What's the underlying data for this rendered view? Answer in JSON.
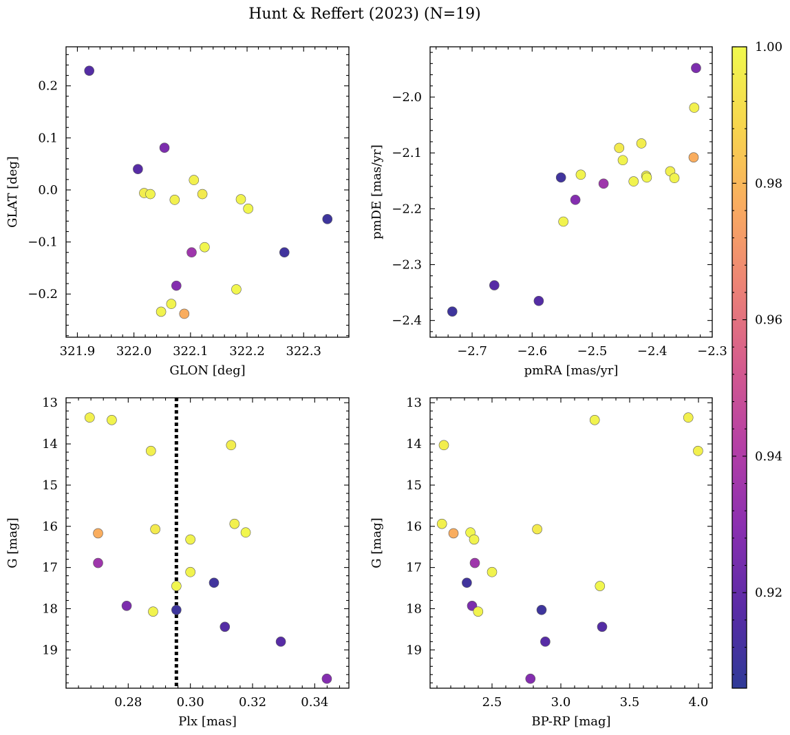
{
  "figure": {
    "title": "Hunt & Reffert (2023) (N=19)"
  },
  "colorbar": {
    "vmin": 0.906,
    "vmax": 1.0,
    "colormap": "plasma",
    "colormap_stops": [
      "#2f3a97",
      "#5a2ba6",
      "#8a2fb0",
      "#b43fa6",
      "#d45b8e",
      "#ec8276",
      "#f9ab60",
      "#f7d54e",
      "#f0f94e"
    ],
    "ticks": [
      0.92,
      0.94,
      0.96,
      0.98,
      1.0
    ],
    "tick_labels": [
      "0.92",
      "0.94",
      "0.96",
      "0.98",
      "1.00"
    ]
  },
  "chart_data": [
    {
      "type": "scatter",
      "xlabel": "GLON [deg]",
      "ylabel": "GLAT [deg]",
      "xlim": [
        321.88,
        322.38
      ],
      "ylim": [
        -0.283,
        0.275
      ],
      "xticks": [
        321.9,
        322.0,
        322.1,
        322.2,
        322.3
      ],
      "xtick_labels": [
        "321.9",
        "322.0",
        "322.1",
        "322.2",
        "322.3"
      ],
      "yticks": [
        -0.2,
        -0.1,
        0.0,
        0.1,
        0.2
      ],
      "ytick_labels": [
        "−0.2",
        "−0.1",
        "0.0",
        "0.1",
        "0.2"
      ],
      "points": [
        {
          "x": 321.921,
          "y": 0.229,
          "c": 0.916
        },
        {
          "x": 322.007,
          "y": 0.04,
          "c": 0.917
        },
        {
          "x": 322.054,
          "y": 0.081,
          "c": 0.926
        },
        {
          "x": 322.018,
          "y": -0.006,
          "c": 0.996
        },
        {
          "x": 322.029,
          "y": -0.008,
          "c": 0.998
        },
        {
          "x": 322.072,
          "y": -0.019,
          "c": 0.997
        },
        {
          "x": 322.106,
          "y": 0.019,
          "c": 0.997
        },
        {
          "x": 322.121,
          "y": -0.008,
          "c": 0.995
        },
        {
          "x": 322.189,
          "y": -0.018,
          "c": 0.998
        },
        {
          "x": 322.202,
          "y": -0.036,
          "c": 0.999
        },
        {
          "x": 322.342,
          "y": -0.056,
          "c": 0.91
        },
        {
          "x": 322.125,
          "y": -0.11,
          "c": 0.999
        },
        {
          "x": 322.102,
          "y": -0.12,
          "c": 0.935
        },
        {
          "x": 322.266,
          "y": -0.12,
          "c": 0.911
        },
        {
          "x": 322.075,
          "y": -0.184,
          "c": 0.928
        },
        {
          "x": 322.181,
          "y": -0.191,
          "c": 0.999
        },
        {
          "x": 322.066,
          "y": -0.219,
          "c": 0.998
        },
        {
          "x": 322.048,
          "y": -0.234,
          "c": 0.998
        },
        {
          "x": 322.089,
          "y": -0.238,
          "c": 0.977
        }
      ]
    },
    {
      "type": "scatter",
      "xlabel": "pmRA [mas/yr]",
      "ylabel": "pmDE [mas/yr]",
      "xlim": [
        -2.77,
        -2.3
      ],
      "ylim": [
        -2.43,
        -1.91
      ],
      "xticks": [
        -2.7,
        -2.6,
        -2.5,
        -2.4,
        -2.3
      ],
      "xtick_labels": [
        "−2.7",
        "−2.6",
        "−2.5",
        "−2.4",
        "−2.3"
      ],
      "yticks": [
        -2.4,
        -2.3,
        -2.2,
        -2.1,
        -2.0
      ],
      "ytick_labels": [
        "−2.4",
        "−2.3",
        "−2.2",
        "−2.1",
        "−2.0"
      ],
      "points": [
        {
          "x": -2.327,
          "y": -1.948,
          "c": 0.926
        },
        {
          "x": -2.33,
          "y": -2.019,
          "c": 0.997
        },
        {
          "x": -2.418,
          "y": -2.083,
          "c": 0.996
        },
        {
          "x": -2.455,
          "y": -2.091,
          "c": 0.995
        },
        {
          "x": -2.331,
          "y": -2.108,
          "c": 0.977
        },
        {
          "x": -2.449,
          "y": -2.113,
          "c": 0.998
        },
        {
          "x": -2.552,
          "y": -2.144,
          "c": 0.911
        },
        {
          "x": -2.519,
          "y": -2.139,
          "c": 0.998
        },
        {
          "x": -2.41,
          "y": -2.141,
          "c": 0.998
        },
        {
          "x": -2.409,
          "y": -2.144,
          "c": 0.999
        },
        {
          "x": -2.37,
          "y": -2.133,
          "c": 0.997
        },
        {
          "x": -2.363,
          "y": -2.145,
          "c": 0.998
        },
        {
          "x": -2.431,
          "y": -2.151,
          "c": 0.998
        },
        {
          "x": -2.481,
          "y": -2.155,
          "c": 0.935
        },
        {
          "x": -2.528,
          "y": -2.184,
          "c": 0.928
        },
        {
          "x": -2.548,
          "y": -2.223,
          "c": 0.998
        },
        {
          "x": -2.663,
          "y": -2.337,
          "c": 0.917
        },
        {
          "x": -2.589,
          "y": -2.365,
          "c": 0.916
        },
        {
          "x": -2.733,
          "y": -2.384,
          "c": 0.91
        }
      ]
    },
    {
      "type": "scatter",
      "xlabel": "Plx [mas]",
      "ylabel": "G [mag]",
      "xlim": [
        0.26,
        0.351
      ],
      "ylim": [
        19.93,
        12.88
      ],
      "xticks": [
        0.28,
        0.3,
        0.32,
        0.34
      ],
      "xtick_labels": [
        "0.28",
        "0.30",
        "0.32",
        "0.34"
      ],
      "yticks": [
        13,
        14,
        15,
        16,
        17,
        18,
        19
      ],
      "ytick_labels": [
        "13",
        "14",
        "15",
        "16",
        "17",
        "18",
        "19"
      ],
      "vline": {
        "x": 0.2955,
        "style": "dotted",
        "color": "#000000"
      },
      "points": [
        {
          "x": 0.2676,
          "y": 13.36,
          "c": 0.997
        },
        {
          "x": 0.2747,
          "y": 13.42,
          "c": 0.998
        },
        {
          "x": 0.2873,
          "y": 14.17,
          "c": 0.997
        },
        {
          "x": 0.3131,
          "y": 14.03,
          "c": 0.996
        },
        {
          "x": 0.2703,
          "y": 16.17,
          "c": 0.977
        },
        {
          "x": 0.2887,
          "y": 16.07,
          "c": 0.995
        },
        {
          "x": 0.3,
          "y": 16.32,
          "c": 0.998
        },
        {
          "x": 0.3142,
          "y": 15.94,
          "c": 0.997
        },
        {
          "x": 0.3178,
          "y": 16.15,
          "c": 0.999
        },
        {
          "x": 0.2703,
          "y": 16.89,
          "c": 0.935
        },
        {
          "x": 0.3,
          "y": 17.11,
          "c": 0.998
        },
        {
          "x": 0.2955,
          "y": 17.45,
          "c": 0.999
        },
        {
          "x": 0.3076,
          "y": 17.37,
          "c": 0.911
        },
        {
          "x": 0.2795,
          "y": 17.93,
          "c": 0.926
        },
        {
          "x": 0.288,
          "y": 18.07,
          "c": 0.998
        },
        {
          "x": 0.2955,
          "y": 18.03,
          "c": 0.91
        },
        {
          "x": 0.3111,
          "y": 18.44,
          "c": 0.916
        },
        {
          "x": 0.3291,
          "y": 18.8,
          "c": 0.917
        },
        {
          "x": 0.3439,
          "y": 19.7,
          "c": 0.928
        }
      ]
    },
    {
      "type": "scatter",
      "xlabel": "BP-RP [mag]",
      "ylabel": "G [mag]",
      "xlim": [
        2.05,
        4.1
      ],
      "ylim": [
        19.93,
        12.88
      ],
      "xticks": [
        2.5,
        3.0,
        3.5,
        4.0
      ],
      "xtick_labels": [
        "2.5",
        "3.0",
        "3.5",
        "4.0"
      ],
      "yticks": [
        13,
        14,
        15,
        16,
        17,
        18,
        19
      ],
      "ytick_labels": [
        "13",
        "14",
        "15",
        "16",
        "17",
        "18",
        "19"
      ],
      "points": [
        {
          "x": 3.926,
          "y": 13.36,
          "c": 0.997
        },
        {
          "x": 3.246,
          "y": 13.42,
          "c": 0.998
        },
        {
          "x": 3.997,
          "y": 14.17,
          "c": 0.997
        },
        {
          "x": 2.15,
          "y": 14.03,
          "c": 0.996
        },
        {
          "x": 2.136,
          "y": 15.94,
          "c": 0.997
        },
        {
          "x": 2.22,
          "y": 16.17,
          "c": 0.977
        },
        {
          "x": 2.343,
          "y": 16.15,
          "c": 0.999
        },
        {
          "x": 2.37,
          "y": 16.32,
          "c": 0.998
        },
        {
          "x": 2.828,
          "y": 16.07,
          "c": 0.995
        },
        {
          "x": 2.375,
          "y": 16.89,
          "c": 0.935
        },
        {
          "x": 2.5,
          "y": 17.11,
          "c": 0.998
        },
        {
          "x": 2.317,
          "y": 17.37,
          "c": 0.911
        },
        {
          "x": 3.284,
          "y": 17.45,
          "c": 0.999
        },
        {
          "x": 2.355,
          "y": 17.93,
          "c": 0.926
        },
        {
          "x": 2.399,
          "y": 18.07,
          "c": 0.998
        },
        {
          "x": 2.86,
          "y": 18.03,
          "c": 0.91
        },
        {
          "x": 3.3,
          "y": 18.44,
          "c": 0.916
        },
        {
          "x": 2.887,
          "y": 18.8,
          "c": 0.917
        },
        {
          "x": 2.779,
          "y": 19.7,
          "c": 0.928
        }
      ]
    }
  ]
}
